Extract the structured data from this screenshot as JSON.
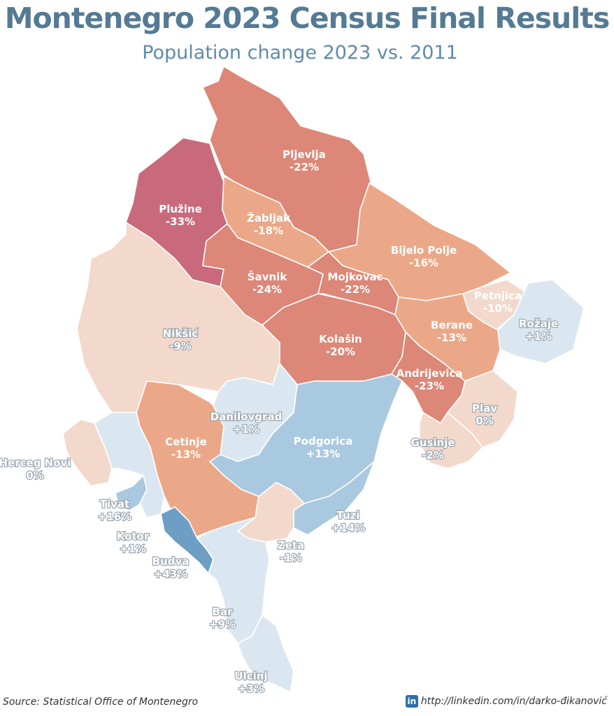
{
  "header": {
    "title": "Montenegro 2023 Census Final Results",
    "subtitle": "Population change 2023 vs. 2011"
  },
  "footer": {
    "source": "Source: Statistical Office of Montenegro",
    "linkedin_icon": "linkedin-icon",
    "linkedin_text": "in",
    "link": "http://linkedin.com/in/darko-đikanović"
  },
  "colors": {
    "strong_decline": "#c96a7c",
    "decline": "#dc8777",
    "moderate_decline": "#eba888",
    "slight_change": "#f3d8cc",
    "slight_growth": "#dbe7f0",
    "growth": "#a9c9e0",
    "strong_growth": "#6e9ec4"
  },
  "municipalities": [
    {
      "name": "Pljevlja",
      "change": "-22%",
      "value": -22
    },
    {
      "name": "Plužine",
      "change": "-33%",
      "value": -33
    },
    {
      "name": "Žabljak",
      "change": "-18%",
      "value": -18
    },
    {
      "name": "Bijelo Polje",
      "change": "-16%",
      "value": -16
    },
    {
      "name": "Šavnik",
      "change": "-24%",
      "value": -24
    },
    {
      "name": "Mojkovac",
      "change": "-22%",
      "value": -22
    },
    {
      "name": "Petnjica",
      "change": "-10%",
      "value": -10
    },
    {
      "name": "Rožaje",
      "change": "+1%",
      "value": 1
    },
    {
      "name": "Berane",
      "change": "-13%",
      "value": -13
    },
    {
      "name": "Nikšić",
      "change": "-9%",
      "value": -9
    },
    {
      "name": "Kolašin",
      "change": "-20%",
      "value": -20
    },
    {
      "name": "Andrijevica",
      "change": "-23%",
      "value": -23
    },
    {
      "name": "Plav",
      "change": "0%",
      "value": 0
    },
    {
      "name": "Danilovgrad",
      "change": "+1%",
      "value": 1
    },
    {
      "name": "Podgorica",
      "change": "+13%",
      "value": 13
    },
    {
      "name": "Gusinje",
      "change": "-2%",
      "value": -2
    },
    {
      "name": "Cetinje",
      "change": "-13%",
      "value": -13
    },
    {
      "name": "Herceg Novi",
      "change": "0%",
      "value": 0
    },
    {
      "name": "Tivat",
      "change": "+16%",
      "value": 16
    },
    {
      "name": "Tuzi",
      "change": "+14%",
      "value": 14
    },
    {
      "name": "Kotor",
      "change": "+1%",
      "value": 1
    },
    {
      "name": "Zeta",
      "change": "-1%",
      "value": -1
    },
    {
      "name": "Budva",
      "change": "+43%",
      "value": 43
    },
    {
      "name": "Bar",
      "change": "+9%",
      "value": 9
    },
    {
      "name": "Ulcinj",
      "change": "+3%",
      "value": 3
    }
  ]
}
